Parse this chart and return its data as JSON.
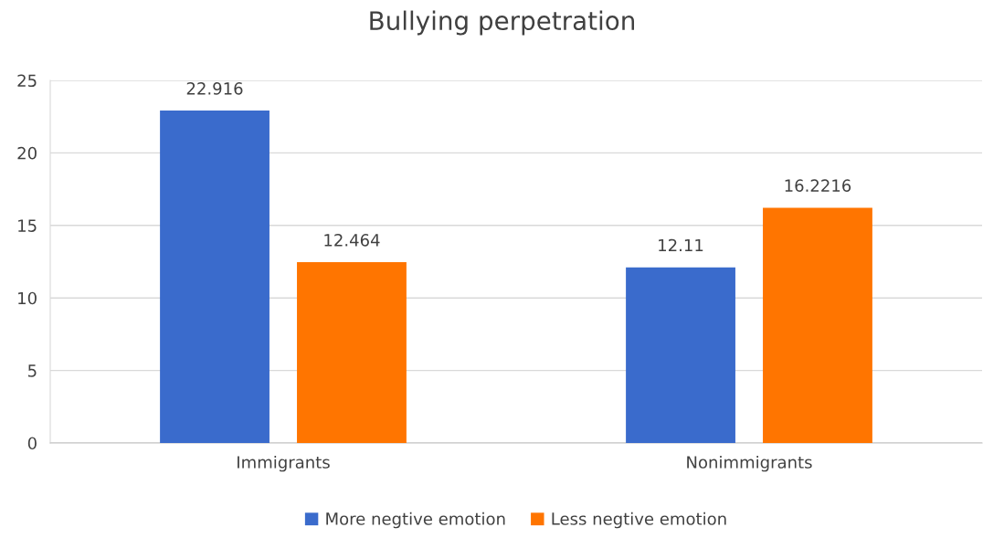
{
  "chart_data": {
    "type": "bar",
    "title": "Bullying perpetration",
    "categories": [
      "Immigrants",
      "Nonimmigrants"
    ],
    "series": [
      {
        "name": "More negtive emotion",
        "color": "#3a6bcc",
        "values": [
          22.916,
          12.11
        ]
      },
      {
        "name": "Less negtive emotion",
        "color": "#ff7500",
        "values": [
          12.464,
          16.2216
        ]
      }
    ],
    "ylim": [
      0,
      25
    ],
    "yticks": [
      0,
      5,
      10,
      15,
      20,
      25
    ],
    "grid": "y",
    "legend": "bottom",
    "data_labels": true
  }
}
